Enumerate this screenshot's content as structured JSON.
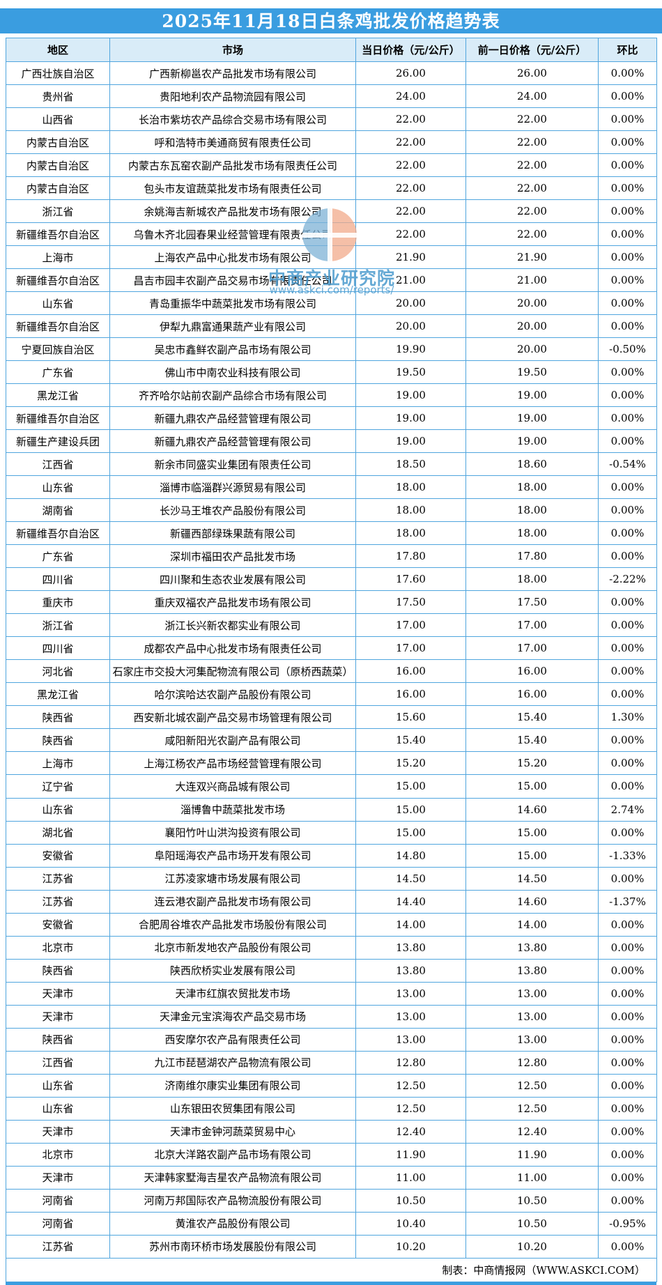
{
  "title": "2025年11月18日白条鸡批发价格趋势表",
  "watermark": {
    "line1": "中商产业研究院",
    "line2": "www.askci.com/reports/"
  },
  "footer": {
    "credit": "制表：中商情报网（WWW.ASKCI.COM）"
  },
  "colors": {
    "title_band": "#3a9de0",
    "header_bg": "#d9ecf8",
    "border": "#4fa5de",
    "text": "#000000",
    "watermark_blue": "#4a9acc",
    "watermark_orange": "#f2aa8a"
  },
  "table": {
    "columns": [
      "地区",
      "市场",
      "当日价格（元/公斤）",
      "前一日价格（元/公斤）",
      "环比"
    ],
    "rows": [
      [
        "广西壮族自治区",
        "广西新柳邕农产品批发市场有限公司",
        "26.00",
        "26.00",
        "0.00%"
      ],
      [
        "贵州省",
        "贵阳地利农产品物流园有限公司",
        "24.00",
        "24.00",
        "0.00%"
      ],
      [
        "山西省",
        "长治市紫坊农产品综合交易市场有限公司",
        "22.00",
        "22.00",
        "0.00%"
      ],
      [
        "内蒙古自治区",
        "呼和浩特市美通商贸有限责任公司",
        "22.00",
        "22.00",
        "0.00%"
      ],
      [
        "内蒙古自治区",
        "内蒙古东瓦窑农副产品批发市场有限责任公司",
        "22.00",
        "22.00",
        "0.00%"
      ],
      [
        "内蒙古自治区",
        "包头市友谊蔬菜批发市场有限责任公司",
        "22.00",
        "22.00",
        "0.00%"
      ],
      [
        "浙江省",
        "余姚海吉新城农产品批发市场有限公司",
        "22.00",
        "22.00",
        "0.00%"
      ],
      [
        "新疆维吾尔自治区",
        "乌鲁木齐北园春果业经营管理有限责任公司",
        "22.00",
        "22.00",
        "0.00%"
      ],
      [
        "上海市",
        "上海农产品中心批发市场有限公司",
        "21.90",
        "21.90",
        "0.00%"
      ],
      [
        "新疆维吾尔自治区",
        "昌吉市园丰农副产品交易市场有限责任公司",
        "21.00",
        "21.00",
        "0.00%"
      ],
      [
        "山东省",
        "青岛重振华中蔬菜批发市场有限公司",
        "20.00",
        "20.00",
        "0.00%"
      ],
      [
        "新疆维吾尔自治区",
        "伊犁九鼎富通果蔬产业有限公司",
        "20.00",
        "20.00",
        "0.00%"
      ],
      [
        "宁夏回族自治区",
        "吴忠市鑫鲜农副产品市场有限公司",
        "19.90",
        "20.00",
        "-0.50%"
      ],
      [
        "广东省",
        "佛山市中南农业科技有限公司",
        "19.50",
        "19.50",
        "0.00%"
      ],
      [
        "黑龙江省",
        "齐齐哈尔站前农副产品综合市场有限公司",
        "19.00",
        "19.00",
        "0.00%"
      ],
      [
        "新疆维吾尔自治区",
        "新疆九鼎农产品经营管理有限公司",
        "19.00",
        "19.00",
        "0.00%"
      ],
      [
        "新疆生产建设兵团",
        "新疆九鼎农产品经营管理有限公司",
        "19.00",
        "19.00",
        "0.00%"
      ],
      [
        "江西省",
        "新余市同盛实业集团有限责任公司",
        "18.50",
        "18.60",
        "-0.54%"
      ],
      [
        "山东省",
        "淄博市临淄群兴源贸易有限公司",
        "18.00",
        "18.00",
        "0.00%"
      ],
      [
        "湖南省",
        "长沙马王堆农产品股份有限公司",
        "18.00",
        "18.00",
        "0.00%"
      ],
      [
        "新疆维吾尔自治区",
        "新疆西部绿珠果蔬有限公司",
        "18.00",
        "18.00",
        "0.00%"
      ],
      [
        "广东省",
        "深圳市福田农产品批发市场",
        "17.80",
        "17.80",
        "0.00%"
      ],
      [
        "四川省",
        "四川聚和生态农业发展有限公司",
        "17.60",
        "18.00",
        "-2.22%"
      ],
      [
        "重庆市",
        "重庆双福农产品批发市场有限公司",
        "17.50",
        "17.50",
        "0.00%"
      ],
      [
        "浙江省",
        "浙江长兴新农都实业有限公司",
        "17.00",
        "17.00",
        "0.00%"
      ],
      [
        "四川省",
        "成都农产品中心批发市场有限责任公司",
        "17.00",
        "17.00",
        "0.00%"
      ],
      [
        "河北省",
        "石家庄市交投大河集配物流有限公司（原桥西蔬菜）",
        "16.00",
        "16.00",
        "0.00%"
      ],
      [
        "黑龙江省",
        "哈尔滨哈达农副产品股份有限公司",
        "16.00",
        "16.00",
        "0.00%"
      ],
      [
        "陕西省",
        "西安新北城农副产品交易市场管理有限公司",
        "15.60",
        "15.40",
        "1.30%"
      ],
      [
        "陕西省",
        "咸阳新阳光农副产品有限公司",
        "15.40",
        "15.40",
        "0.00%"
      ],
      [
        "上海市",
        "上海江杨农产品市场经营管理有限公司",
        "15.20",
        "15.20",
        "0.00%"
      ],
      [
        "辽宁省",
        "大连双兴商品城有限公司",
        "15.00",
        "15.00",
        "0.00%"
      ],
      [
        "山东省",
        "淄博鲁中蔬菜批发市场",
        "15.00",
        "14.60",
        "2.74%"
      ],
      [
        "湖北省",
        "襄阳竹叶山洪沟投资有限公司",
        "15.00",
        "15.00",
        "0.00%"
      ],
      [
        "安徽省",
        "阜阳瑶海农产品市场开发有限公司",
        "14.80",
        "15.00",
        "-1.33%"
      ],
      [
        "江苏省",
        "江苏凌家塘市场发展有限公司",
        "14.50",
        "14.50",
        "0.00%"
      ],
      [
        "江苏省",
        "连云港农副产品批发市场有限公司",
        "14.40",
        "14.60",
        "-1.37%"
      ],
      [
        "安徽省",
        "合肥周谷堆农产品批发市场股份有限公司",
        "14.00",
        "14.00",
        "0.00%"
      ],
      [
        "北京市",
        "北京市新发地农产品股份有限公司",
        "13.80",
        "13.80",
        "0.00%"
      ],
      [
        "陕西省",
        "陕西欣桥实业发展有限公司",
        "13.80",
        "13.80",
        "0.00%"
      ],
      [
        "天津市",
        "天津市红旗农贸批发市场",
        "13.00",
        "13.00",
        "0.00%"
      ],
      [
        "天津市",
        "天津金元宝滨海农产品交易市场",
        "13.00",
        "13.00",
        "0.00%"
      ],
      [
        "陕西省",
        "西安摩尔农产品有限责任公司",
        "13.00",
        "13.00",
        "0.00%"
      ],
      [
        "江西省",
        "九江市琵琶湖农产品物流有限公司",
        "12.80",
        "12.80",
        "0.00%"
      ],
      [
        "山东省",
        "济南维尔康实业集团有限公司",
        "12.50",
        "12.50",
        "0.00%"
      ],
      [
        "山东省",
        "山东银田农贸集团有限公司",
        "12.50",
        "12.50",
        "0.00%"
      ],
      [
        "天津市",
        "天津市金钟河蔬菜贸易中心",
        "12.40",
        "12.40",
        "0.00%"
      ],
      [
        "北京市",
        "北京大洋路农副产品市场有限公司",
        "11.90",
        "11.90",
        "0.00%"
      ],
      [
        "天津市",
        "天津韩家墅海吉星农产品物流有限公司",
        "11.00",
        "11.00",
        "0.00%"
      ],
      [
        "河南省",
        "河南万邦国际农产品物流股份有限公司",
        "10.50",
        "10.50",
        "0.00%"
      ],
      [
        "河南省",
        "黄淮农产品股份有限公司",
        "10.40",
        "10.50",
        "-0.95%"
      ],
      [
        "江苏省",
        "苏州市南环桥市场发展股份有限公司",
        "10.20",
        "10.20",
        "0.00%"
      ]
    ]
  }
}
